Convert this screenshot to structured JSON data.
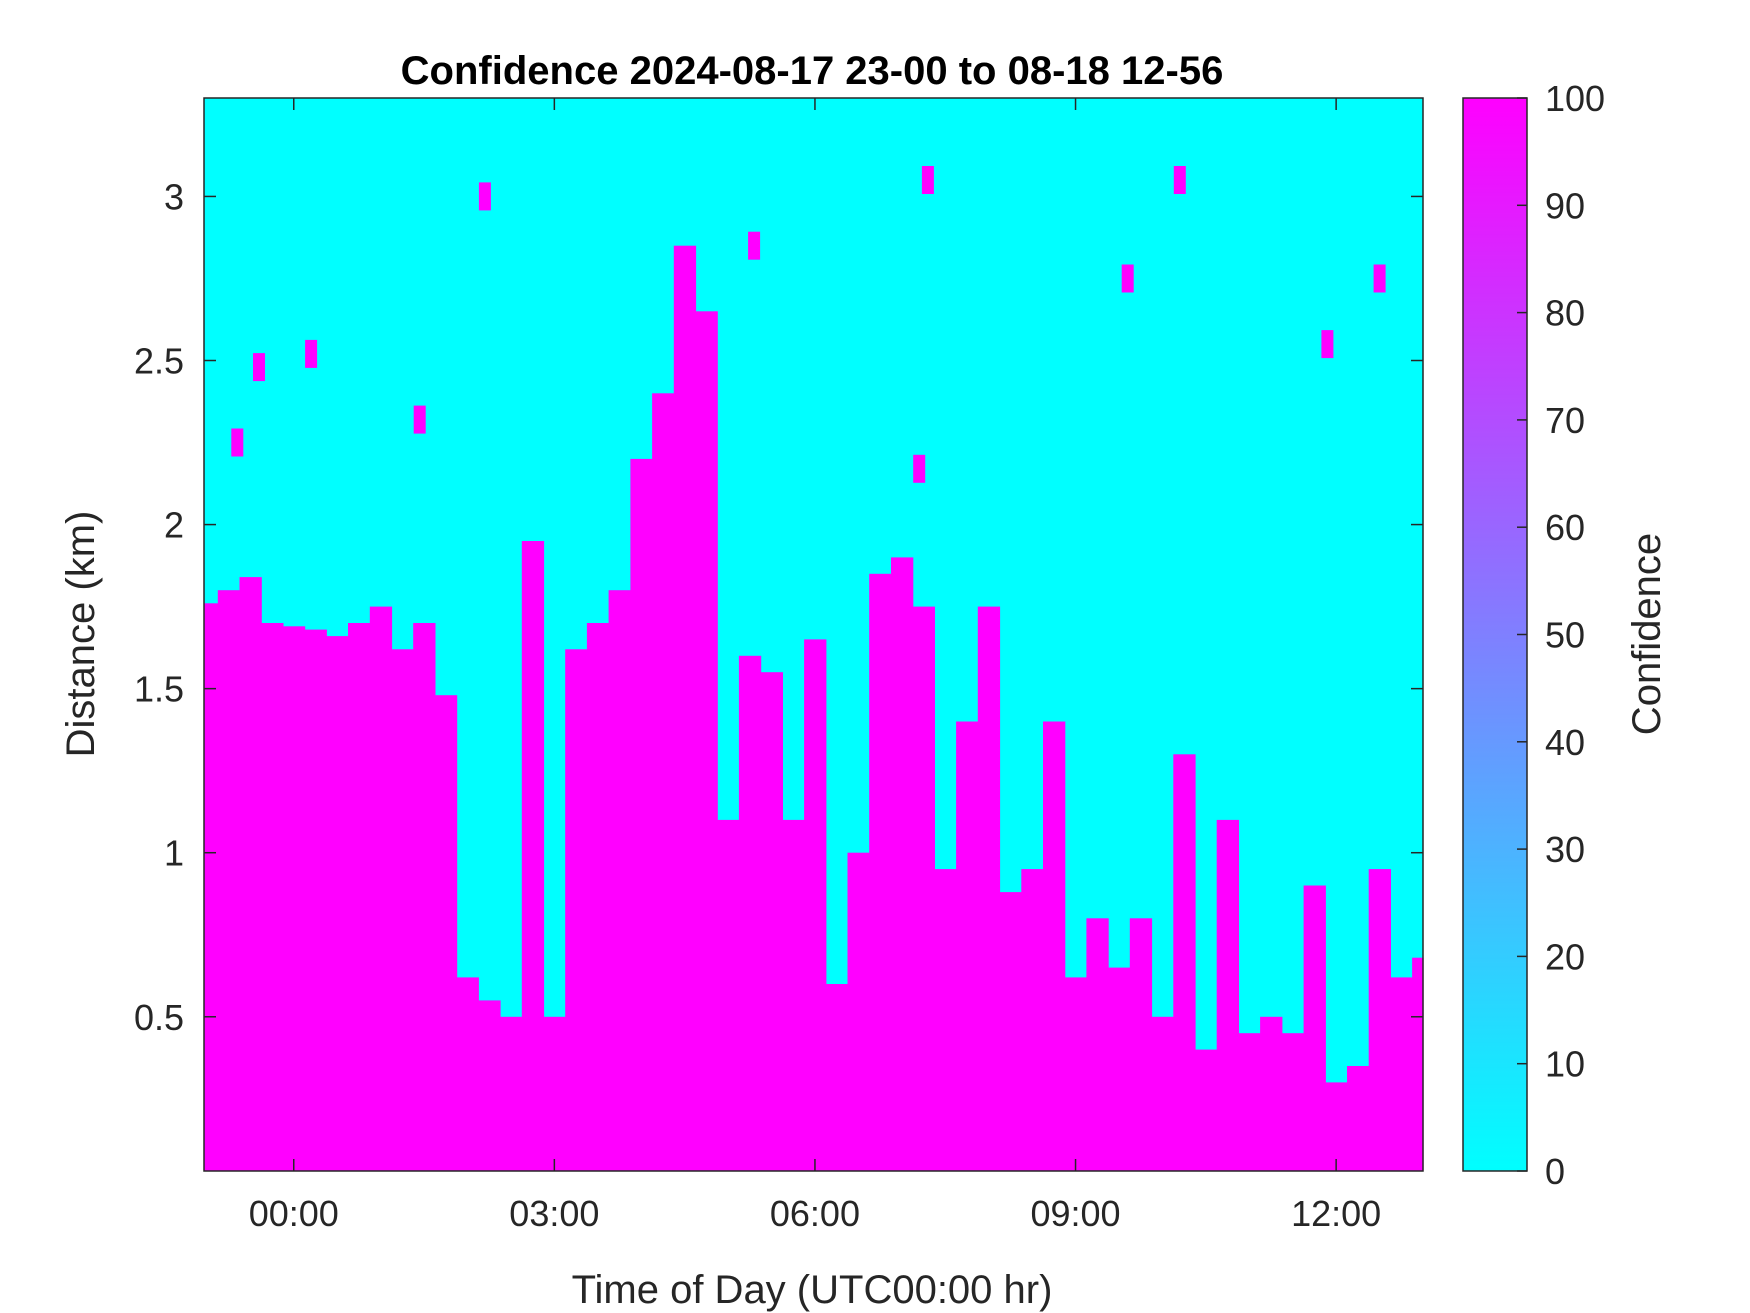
{
  "chart_data": {
    "type": "heatmap",
    "title": "Confidence 2024-08-17 23-00 to 08-18 12-56",
    "xlabel": "Time of Day (UTC00:00 hr)",
    "ylabel": "Distance (km)",
    "colorbar_label": "Confidence",
    "xlim_hours": [
      -1.0333,
      13.0
    ],
    "ylim_km": [
      0.03,
      3.3
    ],
    "x_ticks": [
      {
        "value": 0,
        "label": "00:00"
      },
      {
        "value": 3,
        "label": "03:00"
      },
      {
        "value": 6,
        "label": "06:00"
      },
      {
        "value": 9,
        "label": "09:00"
      },
      {
        "value": 12,
        "label": "12:00"
      }
    ],
    "y_ticks": [
      {
        "value": 0.5,
        "label": "0.5"
      },
      {
        "value": 1,
        "label": "1"
      },
      {
        "value": 1.5,
        "label": "1.5"
      },
      {
        "value": 2,
        "label": "2"
      },
      {
        "value": 2.5,
        "label": "2.5"
      },
      {
        "value": 3,
        "label": "3"
      }
    ],
    "colorbar_ticks": [
      {
        "value": 0,
        "label": "0"
      },
      {
        "value": 10,
        "label": "10"
      },
      {
        "value": 20,
        "label": "20"
      },
      {
        "value": 30,
        "label": "30"
      },
      {
        "value": 40,
        "label": "40"
      },
      {
        "value": 50,
        "label": "50"
      },
      {
        "value": 60,
        "label": "60"
      },
      {
        "value": 70,
        "label": "70"
      },
      {
        "value": 80,
        "label": "80"
      },
      {
        "value": 90,
        "label": "90"
      },
      {
        "value": 100,
        "label": "100"
      }
    ],
    "color_range": [
      0,
      100
    ],
    "colormap": {
      "low": "#00ffff",
      "high": "#ff00ff"
    },
    "grid": false,
    "high_confidence_top_km": {
      "x_hours": [
        -1.0,
        -0.75,
        -0.5,
        -0.25,
        0.0,
        0.25,
        0.5,
        0.75,
        1.0,
        1.25,
        1.5,
        1.75,
        2.0,
        2.25,
        2.5,
        2.75,
        3.0,
        3.25,
        3.5,
        3.75,
        4.0,
        4.25,
        4.5,
        4.75,
        5.0,
        5.25,
        5.5,
        5.75,
        6.0,
        6.25,
        6.5,
        6.75,
        7.0,
        7.25,
        7.5,
        7.75,
        8.0,
        8.25,
        8.5,
        8.75,
        9.0,
        9.25,
        9.5,
        9.75,
        10.0,
        10.25,
        10.5,
        10.75,
        11.0,
        11.25,
        11.5,
        11.75,
        12.0,
        12.25,
        12.5,
        12.75,
        13.0
      ],
      "values": [
        1.76,
        1.8,
        1.84,
        1.7,
        1.69,
        1.68,
        1.66,
        1.7,
        1.75,
        1.62,
        1.7,
        1.48,
        0.62,
        0.55,
        0.5,
        1.95,
        0.5,
        1.62,
        1.7,
        1.8,
        2.2,
        2.4,
        2.85,
        2.65,
        1.1,
        1.6,
        1.55,
        1.1,
        1.65,
        0.6,
        1.0,
        1.85,
        1.9,
        1.75,
        0.95,
        1.4,
        1.75,
        0.88,
        0.95,
        1.4,
        0.62,
        0.8,
        0.65,
        0.8,
        0.5,
        1.3,
        0.4,
        1.1,
        0.45,
        0.5,
        0.45,
        0.9,
        0.3,
        0.35,
        0.95,
        0.62,
        0.68
      ]
    },
    "sparse_high_confidence_cells": [
      {
        "x_hours": 2.2,
        "y_km": 3.0
      },
      {
        "x_hours": 5.3,
        "y_km": 2.85
      },
      {
        "x_hours": 7.3,
        "y_km": 3.05
      },
      {
        "x_hours": 9.6,
        "y_km": 2.75
      },
      {
        "x_hours": 10.2,
        "y_km": 3.05
      },
      {
        "x_hours": 12.5,
        "y_km": 2.75
      },
      {
        "x_hours": 0.2,
        "y_km": 2.52
      },
      {
        "x_hours": -0.4,
        "y_km": 2.48
      },
      {
        "x_hours": -0.65,
        "y_km": 2.25
      },
      {
        "x_hours": 1.45,
        "y_km": 2.32
      },
      {
        "x_hours": 7.2,
        "y_km": 2.17
      },
      {
        "x_hours": 11.9,
        "y_km": 2.55
      }
    ]
  }
}
